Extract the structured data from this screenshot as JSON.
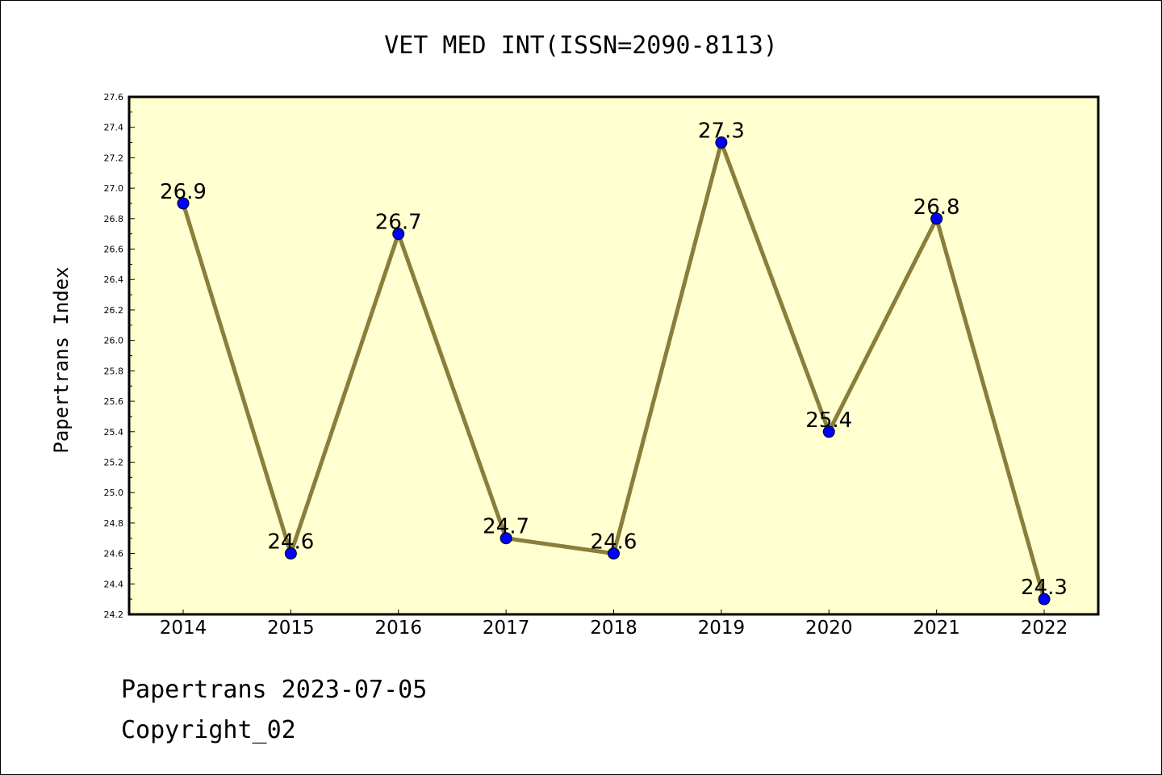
{
  "chart_data": {
    "type": "line",
    "title": "VET MED INT(ISSN=2090-8113)",
    "ylabel": "Papertrans Index",
    "xlabel": "",
    "categories": [
      "2014",
      "2015",
      "2016",
      "2017",
      "2018",
      "2019",
      "2020",
      "2021",
      "2022"
    ],
    "series": [
      {
        "values": [
          26.9,
          24.6,
          26.7,
          24.7,
          24.6,
          27.3,
          25.4,
          26.8,
          24.3
        ]
      }
    ],
    "data_labels": [
      "26.9",
      "24.6",
      "26.7",
      "24.7",
      "24.6",
      "27.3",
      "25.4",
      "26.8",
      "24.3"
    ],
    "ylim": [
      24.2,
      27.6
    ],
    "yticks": [
      "24.2",
      "24.4",
      "24.6",
      "24.8",
      "25.0",
      "25.2",
      "25.4",
      "25.6",
      "25.8",
      "26.0",
      "26.2",
      "26.4",
      "26.6",
      "26.8",
      "27.0",
      "27.2",
      "27.4",
      "27.6"
    ],
    "grid": false,
    "colors": {
      "plot_background": "#ffffd0",
      "line": "#8b7d3a",
      "marker": "#0000ff"
    }
  },
  "footer": {
    "line1": "Papertrans 2023-07-05",
    "line2": "Copyright_02"
  }
}
